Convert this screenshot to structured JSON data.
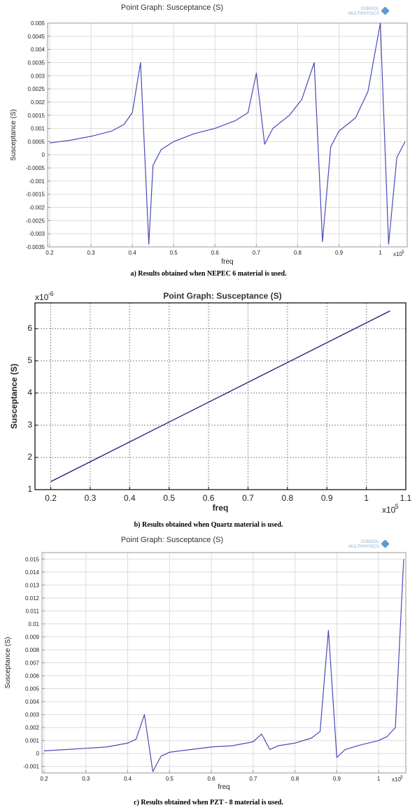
{
  "logo": {
    "line1": "COMSOL",
    "line2": "MULTIPHYSICS"
  },
  "chart_data": [
    {
      "type": "line",
      "title": "Point Graph: Susceptance (S)",
      "xlabel": "freq",
      "ylabel": "Susceptance (S)",
      "x_multiplier": "x10",
      "x_multiplier_exp": "5",
      "caption": "a) Results obtained when NEPEC 6 material is used.",
      "xlim": [
        0.195,
        1.065
      ],
      "ylim": [
        -0.0035,
        0.005
      ],
      "xticks": [
        "0.2",
        "0.3",
        "0.4",
        "0.5",
        "0.6",
        "0.7",
        "0.8",
        "0.9",
        "1"
      ],
      "yticks": [
        "0.005",
        "0.0045",
        "0.004",
        "0.0035",
        "0.003",
        "0.0025",
        "0.002",
        "0.0015",
        "0.001",
        "0.0005",
        "0",
        "-0.0005",
        "-0.001",
        "-0.0015",
        "-0.002",
        "-0.0025",
        "-0.003",
        "-0.0035"
      ],
      "grid": true,
      "series": [
        {
          "color": "#4a4ab8",
          "points": [
            [
              0.2,
              0.00045
            ],
            [
              0.25,
              0.00055
            ],
            [
              0.3,
              0.0007
            ],
            [
              0.35,
              0.0009
            ],
            [
              0.38,
              0.00115
            ],
            [
              0.4,
              0.0016
            ],
            [
              0.42,
              0.0035
            ],
            [
              0.44,
              -0.0034
            ],
            [
              0.45,
              -0.0004
            ],
            [
              0.47,
              0.0002
            ],
            [
              0.5,
              0.0005
            ],
            [
              0.55,
              0.0008
            ],
            [
              0.6,
              0.001
            ],
            [
              0.65,
              0.0013
            ],
            [
              0.68,
              0.0016
            ],
            [
              0.7,
              0.0031
            ],
            [
              0.72,
              0.0004
            ],
            [
              0.74,
              0.001
            ],
            [
              0.78,
              0.0015
            ],
            [
              0.81,
              0.0021
            ],
            [
              0.84,
              0.0035
            ],
            [
              0.86,
              -0.0033
            ],
            [
              0.88,
              0.0003
            ],
            [
              0.9,
              0.0009
            ],
            [
              0.94,
              0.0014
            ],
            [
              0.97,
              0.0024
            ],
            [
              1.0,
              0.005
            ],
            [
              1.02,
              -0.0034
            ],
            [
              1.04,
              -0.0001
            ],
            [
              1.06,
              0.0005
            ]
          ]
        }
      ]
    },
    {
      "type": "line",
      "title": "Point Graph: Susceptance (S)",
      "xlabel": "freq",
      "ylabel": "Susceptance (S)",
      "x_multiplier": "x10",
      "x_multiplier_exp": "5",
      "y_multiplier": "x10",
      "y_multiplier_exp": "-6",
      "caption": "b) Results obtained when Quartz material is used.",
      "xlim": [
        0.16,
        1.1
      ],
      "ylim": [
        1,
        6.8
      ],
      "xticks": [
        "0.2",
        "0.3",
        "0.4",
        "0.5",
        "0.6",
        "0.7",
        "0.8",
        "0.9",
        "1",
        "1.1"
      ],
      "yticks": [
        "1",
        "2",
        "3",
        "4",
        "5",
        "6"
      ],
      "grid": true,
      "series": [
        {
          "color": "#1a1a7a",
          "points": [
            [
              0.2,
              1.25
            ],
            [
              1.06,
              6.55
            ]
          ]
        }
      ]
    },
    {
      "type": "line",
      "title": "Point Graph: Susceptance (S)",
      "xlabel": "freq",
      "ylabel": "Susceptance (S)",
      "x_multiplier": "x10",
      "x_multiplier_exp": "5",
      "caption": "c) Results obtained when PZT - 8 material is used.",
      "xlim": [
        0.195,
        1.065
      ],
      "ylim": [
        -0.0015,
        0.0155
      ],
      "xticks": [
        "0.2",
        "0.3",
        "0.4",
        "0.5",
        "0.6",
        "0.7",
        "0.8",
        "0.9",
        "1"
      ],
      "yticks": [
        "0.015",
        "0.014",
        "0.013",
        "0.012",
        "0.011",
        "0.01",
        "0.009",
        "0.008",
        "0.007",
        "0.006",
        "0.005",
        "0.004",
        "0.003",
        "0.002",
        "0.001",
        "0",
        "-0.001"
      ],
      "grid": true,
      "series": [
        {
          "color": "#4a4ab8",
          "points": [
            [
              0.2,
              0.0002
            ],
            [
              0.25,
              0.0003
            ],
            [
              0.3,
              0.0004
            ],
            [
              0.35,
              0.0005
            ],
            [
              0.4,
              0.0008
            ],
            [
              0.42,
              0.0011
            ],
            [
              0.44,
              0.003
            ],
            [
              0.46,
              -0.0014
            ],
            [
              0.48,
              -0.0002
            ],
            [
              0.5,
              0.0001
            ],
            [
              0.55,
              0.0003
            ],
            [
              0.6,
              0.0005
            ],
            [
              0.65,
              0.0006
            ],
            [
              0.7,
              0.0009
            ],
            [
              0.72,
              0.0015
            ],
            [
              0.74,
              0.0003
            ],
            [
              0.76,
              0.0006
            ],
            [
              0.8,
              0.0008
            ],
            [
              0.84,
              0.0012
            ],
            [
              0.86,
              0.0017
            ],
            [
              0.88,
              0.0095
            ],
            [
              0.9,
              -0.0003
            ],
            [
              0.92,
              0.0003
            ],
            [
              0.95,
              0.0006
            ],
            [
              1.0,
              0.001
            ],
            [
              1.02,
              0.0013
            ],
            [
              1.04,
              0.002
            ],
            [
              1.06,
              0.015
            ]
          ]
        }
      ]
    }
  ]
}
